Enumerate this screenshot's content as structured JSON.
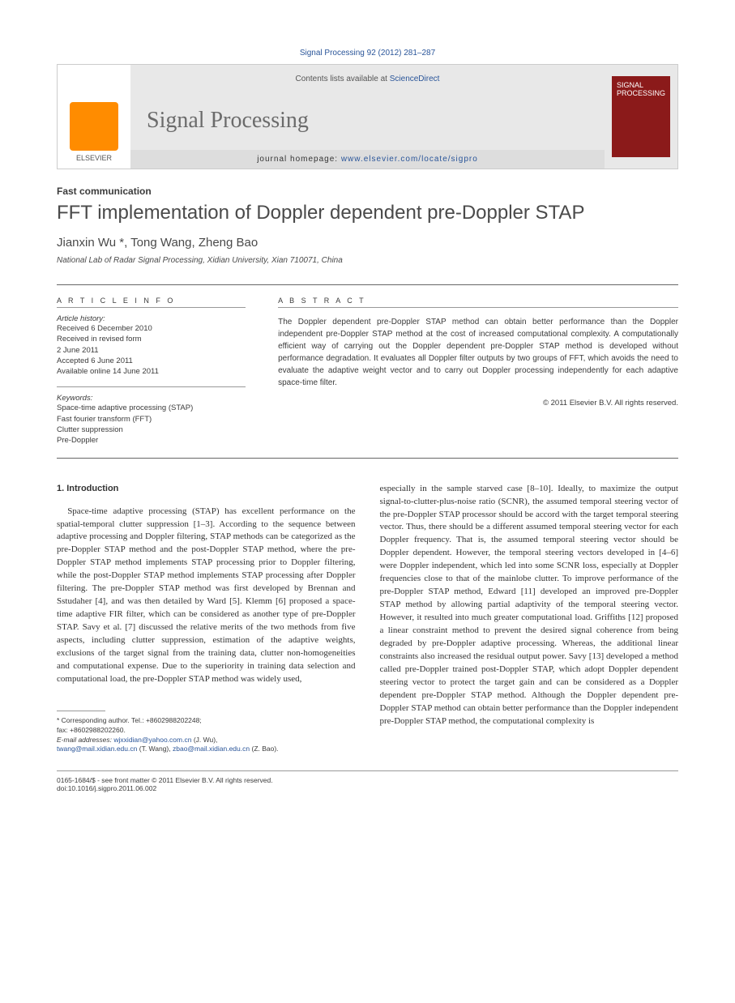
{
  "header": {
    "citation": "Signal Processing 92 (2012) 281–287",
    "contents_prefix": "Contents lists available at",
    "contents_link": "ScienceDirect",
    "journal_name": "Signal Processing",
    "homepage_label": "journal homepage:",
    "homepage_url": "www.elsevier.com/locate/sigpro",
    "publisher": "ELSEVIER",
    "cover_text_top": "SIGNAL",
    "cover_text_bottom": "PROCESSING"
  },
  "article": {
    "section_label": "Fast communication",
    "title": "FFT implementation of Doppler dependent pre-Doppler STAP",
    "authors": "Jianxin Wu *, Tong Wang, Zheng Bao",
    "affiliation": "National Lab of Radar Signal Processing, Xidian University, Xian 710071, China"
  },
  "info": {
    "heading": "A R T I C L E   I N F O",
    "history_label": "Article history:",
    "history": [
      "Received 6 December 2010",
      "Received in revised form",
      "2 June 2011",
      "Accepted 6 June 2011",
      "Available online 14 June 2011"
    ],
    "keywords_label": "Keywords:",
    "keywords": [
      "Space-time adaptive processing (STAP)",
      "Fast fourier transform (FFT)",
      "Clutter suppression",
      "Pre-Doppler"
    ]
  },
  "abstract": {
    "heading": "A B S T R A C T",
    "text": "The Doppler dependent pre-Doppler STAP method can obtain better performance than the Doppler independent pre-Doppler STAP method at the cost of increased computational complexity. A computationally efficient way of carrying out the Doppler dependent pre-Doppler STAP method is developed without performance degradation. It evaluates all Doppler filter outputs by two groups of FFT, which avoids the need to evaluate the adaptive weight vector and to carry out Doppler processing independently for each adaptive space-time filter.",
    "copyright": "© 2011 Elsevier B.V. All rights reserved."
  },
  "body": {
    "section_heading": "1.  Introduction",
    "col1": "Space-time adaptive processing (STAP) has excellent performance on the spatial-temporal clutter suppression [1–3]. According to the sequence between adaptive processing and Doppler filtering, STAP methods can be categorized as the pre-Doppler STAP method and the post-Doppler STAP method, where the pre-Doppler STAP method implements STAP processing prior to Doppler filtering, while the post-Doppler STAP method implements STAP processing after Doppler filtering. The pre-Doppler STAP method was first developed by Brennan and Sstudaher [4], and was then detailed by Ward [5]. Klemm [6] proposed a space-time adaptive FIR filter, which can be considered as another type of pre-Doppler STAP. Savy et al. [7] discussed the relative merits of the two methods from five aspects, including clutter suppression, estimation of the adaptive weights, exclusions of the target signal from the training data, clutter non-homogeneities and computational expense. Due to the superiority in training data selection and computational load, the pre-Doppler STAP method was widely used,",
    "col2": "especially in the sample starved case [8–10]. Ideally, to maximize the output signal-to-clutter-plus-noise ratio (SCNR), the assumed temporal steering vector of the pre-Doppler STAP processor should be accord with the target temporal steering vector. Thus, there should be a different assumed temporal steering vector for each Doppler frequency. That is, the assumed temporal steering vector should be Doppler dependent. However, the temporal steering vectors developed in [4–6] were Doppler independent, which led into some SCNR loss, especially at Doppler frequencies close to that of the mainlobe clutter. To improve performance of the pre-Doppler STAP method, Edward [11] developed an improved pre-Doppler STAP method by allowing partial adaptivity of the temporal steering vector. However, it resulted into much greater computational load. Griffiths [12] proposed a linear constraint method to prevent the desired signal coherence from being degraded by pre-Doppler adaptive processing. Whereas, the additional linear constraints also increased the residual output power. Savy [13] developed a method called pre-Doppler trained post-Doppler STAP, which adopt Doppler dependent steering vector to protect the target gain and can be considered as a Doppler dependent pre-Doppler STAP method. Although the Doppler dependent pre-Doppler STAP method can obtain better performance than the Doppler independent pre-Doppler STAP method, the computational complexity is"
  },
  "footnotes": {
    "corr_label": "* Corresponding author. Tel.: +8602988202248;",
    "fax": "fax: +8602988202260.",
    "email_label": "E-mail addresses:",
    "email1": "wjxxidian@yahoo.com.cn",
    "name1": "(J. Wu),",
    "email2": "twang@mail.xidian.edu.cn",
    "name2": "(T. Wang),",
    "email3": "zbao@mail.xidian.edu.cn",
    "name3": "(Z. Bao)."
  },
  "bottom": {
    "issn": "0165-1684/$ - see front matter © 2011 Elsevier B.V. All rights reserved.",
    "doi": "doi:10.1016/j.sigpro.2011.06.002"
  },
  "colors": {
    "link": "#2a5599",
    "elsevier_orange": "#ff8c00",
    "cover_red": "#8b1a1a",
    "text": "#333333",
    "banner_bg": "#e8e8e8"
  }
}
